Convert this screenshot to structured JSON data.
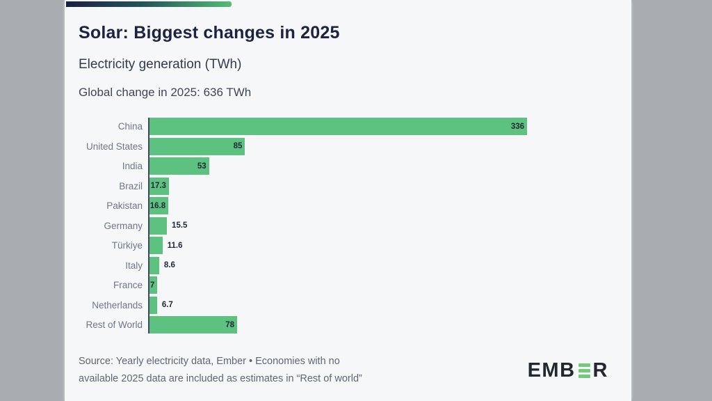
{
  "page": {
    "background_outer": "#a9adb1",
    "background_card": "#f6f7f9"
  },
  "header": {
    "title": "Solar: Biggest changes in 2025",
    "subtitle": "Electricity generation (TWh)",
    "note": "Global change in 2025: 636 TWh"
  },
  "chart_data": {
    "type": "bar",
    "orientation": "horizontal",
    "title": "Solar: Biggest changes in 2025",
    "xlabel": "Electricity generation (TWh)",
    "unit": "TWh",
    "categories": [
      "China",
      "United States",
      "India",
      "Brazil",
      "Pakistan",
      "Germany",
      "Türkiye",
      "Italy",
      "France",
      "Netherlands",
      "Rest of World"
    ],
    "values": [
      336,
      85,
      53,
      17.3,
      16.8,
      15.5,
      11.6,
      8.6,
      7,
      6.7,
      78
    ],
    "value_labels": [
      "336",
      "85",
      "53",
      "17.3",
      "16.8",
      "15.5",
      "11.6",
      "8.6",
      "7",
      "6.7",
      "78"
    ],
    "label_inside": [
      true,
      true,
      true,
      true,
      true,
      false,
      false,
      false,
      true,
      false,
      true
    ],
    "xlim": [
      0,
      336
    ],
    "bar_color": "#5dc27f",
    "axis_color": "#3f4860",
    "grid": false,
    "legend": null,
    "global_total_note": "Global change in 2025: 636 TWh"
  },
  "footer": {
    "source_line1": "Source: Yearly electricity data, Ember • Economies with no",
    "source_line2": "available 2025 data are included as estimates in “Rest of world”",
    "logo": {
      "name": "EMBER",
      "prefix": "EMB",
      "suffix": "R",
      "green": "#74ca7a"
    }
  },
  "colors": {
    "accent_green": "#5dc27f",
    "title_navy": "#1d2240",
    "gradient_start": "#1a2140",
    "gradient_end": "#55bd78",
    "outer_gray": "#a9adb1"
  }
}
